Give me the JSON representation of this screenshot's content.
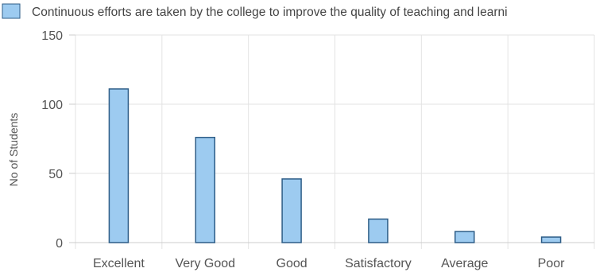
{
  "chart_data": {
    "type": "bar",
    "categories": [
      "Excellent",
      "Very Good",
      "Good",
      "Satisfactory",
      "Average",
      "Poor"
    ],
    "series": [
      {
        "name": "Continuous efforts are taken by the college to improve the quality of teaching and learni",
        "values": [
          111,
          76,
          46,
          17,
          8,
          4
        ]
      }
    ],
    "xlabel": "",
    "ylabel": "No of Students",
    "ylim": [
      0,
      150
    ],
    "yticks": [
      0,
      50,
      100,
      150
    ],
    "grid": true,
    "legend": "top-left",
    "colors": {
      "bar_fill": "#9dcbf0",
      "bar_stroke": "#2e5d87",
      "grid": "#e3e3e3",
      "axis": "#cccccc"
    }
  }
}
